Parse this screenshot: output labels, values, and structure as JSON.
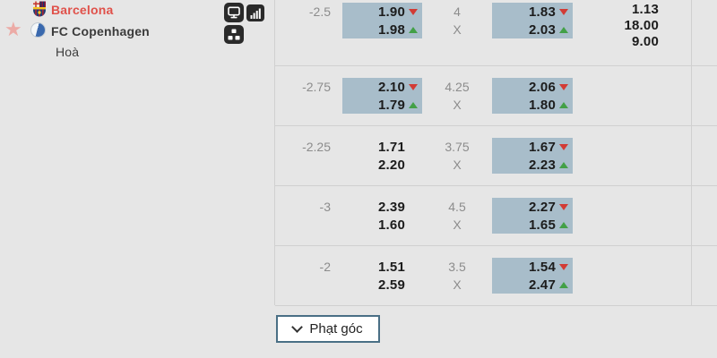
{
  "left_panel": {
    "home_team": "Barcelona",
    "away_team": "FC Copenhagen",
    "draw_label": "Hoà",
    "icons": {
      "favorite": "star-icon",
      "home_logo": "barcelona-crest",
      "away_logo": "fc-copenhagen-crest",
      "live_tv": "monitor-icon",
      "stats": "signal-bars-icon",
      "lineup": "lineup-icon"
    }
  },
  "odds_table": {
    "moneyline": [
      "1.13",
      "18.00",
      "9.00"
    ],
    "draw_mark": "X",
    "rows": [
      {
        "line": "-2.5",
        "bet1": {
          "odds": [
            "1.90",
            "1.98"
          ],
          "trends": [
            "down",
            "up"
          ],
          "highlight": true
        },
        "total": "4",
        "bet2": {
          "odds": [
            "1.83",
            "2.03"
          ],
          "trends": [
            "down",
            "up"
          ],
          "highlight": true
        }
      },
      {
        "line": "-2.75",
        "bet1": {
          "odds": [
            "2.10",
            "1.79"
          ],
          "trends": [
            "down",
            "up"
          ],
          "highlight": true
        },
        "total": "4.25",
        "bet2": {
          "odds": [
            "2.06",
            "1.80"
          ],
          "trends": [
            "down",
            "up"
          ],
          "highlight": true
        }
      },
      {
        "line": "-2.25",
        "bet1": {
          "odds": [
            "1.71",
            "2.20"
          ],
          "trends": [],
          "highlight": false
        },
        "total": "3.75",
        "bet2": {
          "odds": [
            "1.67",
            "2.23"
          ],
          "trends": [
            "down",
            "up"
          ],
          "highlight": true
        }
      },
      {
        "line": "-3",
        "bet1": {
          "odds": [
            "2.39",
            "1.60"
          ],
          "trends": [],
          "highlight": false
        },
        "total": "4.5",
        "bet2": {
          "odds": [
            "2.27",
            "1.65"
          ],
          "trends": [
            "down",
            "up"
          ],
          "highlight": true
        }
      },
      {
        "line": "-2",
        "bet1": {
          "odds": [
            "1.51",
            "2.59"
          ],
          "trends": [],
          "highlight": false
        },
        "total": "3.5",
        "bet2": {
          "odds": [
            "1.54",
            "2.47"
          ],
          "trends": [
            "down",
            "up"
          ],
          "highlight": true
        }
      }
    ]
  },
  "footer": {
    "corner_button_label": "Phạt góc"
  },
  "colors": {
    "background": "#e6e6e6",
    "divider": "#d0d0d0",
    "highlight_cell": "#a8bdca",
    "trend_up": "#43a047",
    "trend_down": "#d23b35",
    "home_team_text": "#e0514a",
    "button_border": "#4a6f85"
  }
}
